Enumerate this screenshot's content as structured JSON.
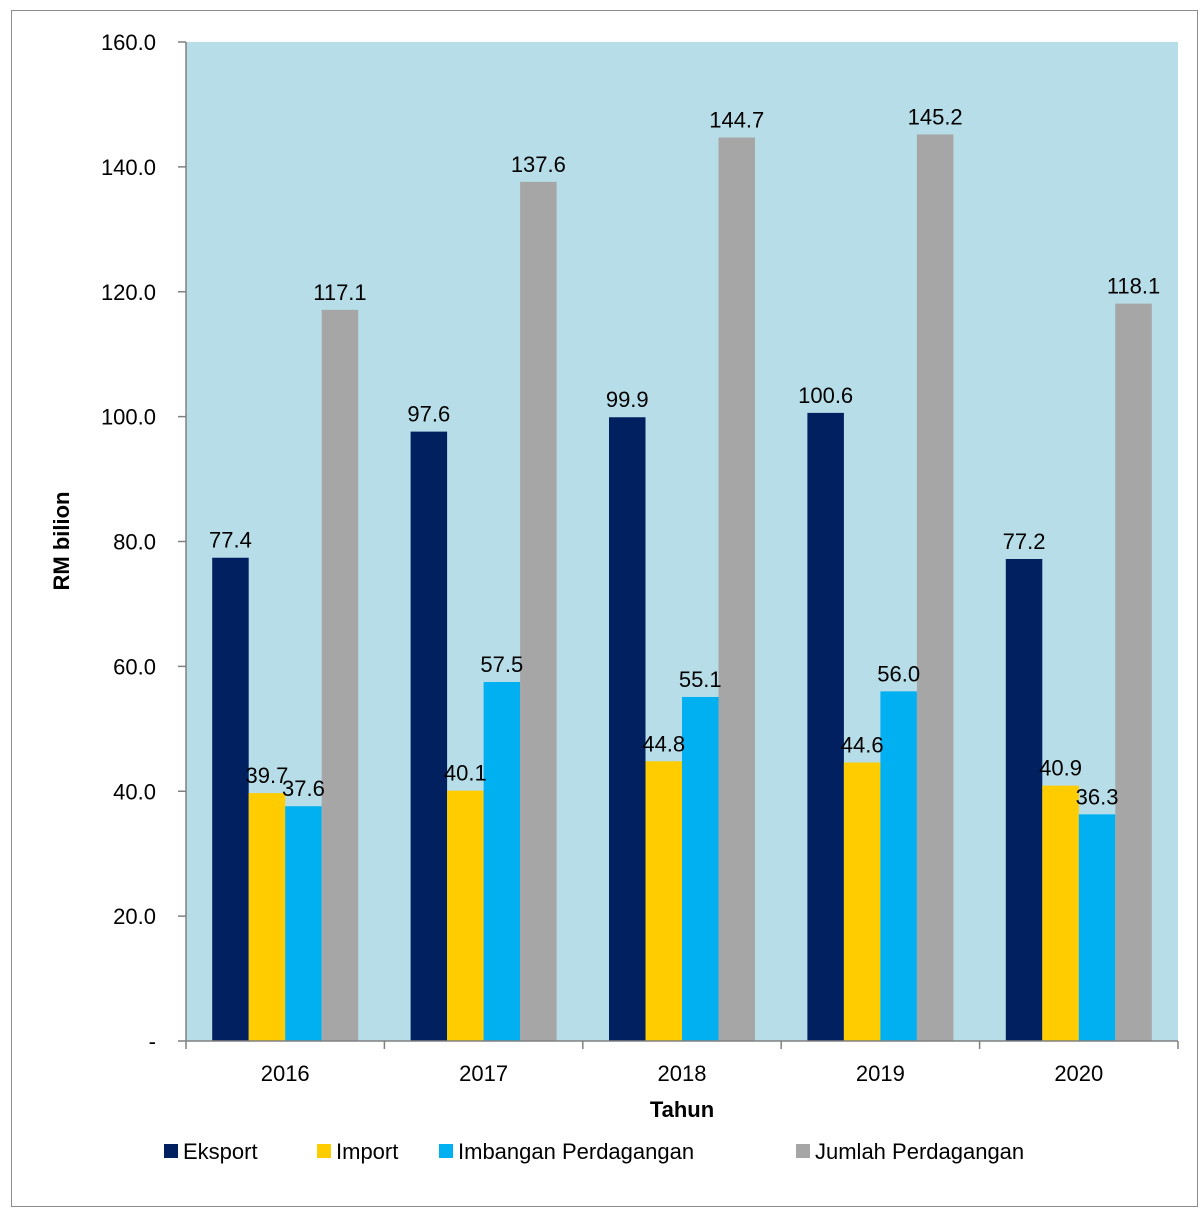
{
  "chart_data": {
    "type": "bar",
    "categories": [
      "2016",
      "2017",
      "2018",
      "2019",
      "2020"
    ],
    "series": [
      {
        "name": "Eksport",
        "values": [
          77.4,
          97.6,
          99.9,
          100.6,
          77.2
        ],
        "color": "#002060"
      },
      {
        "name": "Import",
        "values": [
          39.7,
          40.1,
          44.8,
          44.6,
          40.9
        ],
        "color": "#FFCC00"
      },
      {
        "name": "Imbangan Perdagangan",
        "values": [
          37.6,
          57.5,
          55.1,
          56.0,
          36.3
        ],
        "color": "#00B0F0"
      },
      {
        "name": "Jumlah Perdagangan",
        "values": [
          117.1,
          137.6,
          144.7,
          145.2,
          118.1
        ],
        "color": "#A6A6A6"
      }
    ],
    "xlabel": "Tahun",
    "ylabel": "RM bilion",
    "ylim": [
      0,
      160
    ],
    "yticks": [
      0,
      20,
      40,
      60,
      80,
      100,
      120,
      140,
      160
    ],
    "ytick_labels": [
      "-",
      "20.0",
      "40.0",
      "60.0",
      "80.0",
      "100.0",
      "120.0",
      "140.0",
      "160.0"
    ],
    "plot_background": "#B7DEE8",
    "grid": false,
    "legend_position": "bottom"
  }
}
